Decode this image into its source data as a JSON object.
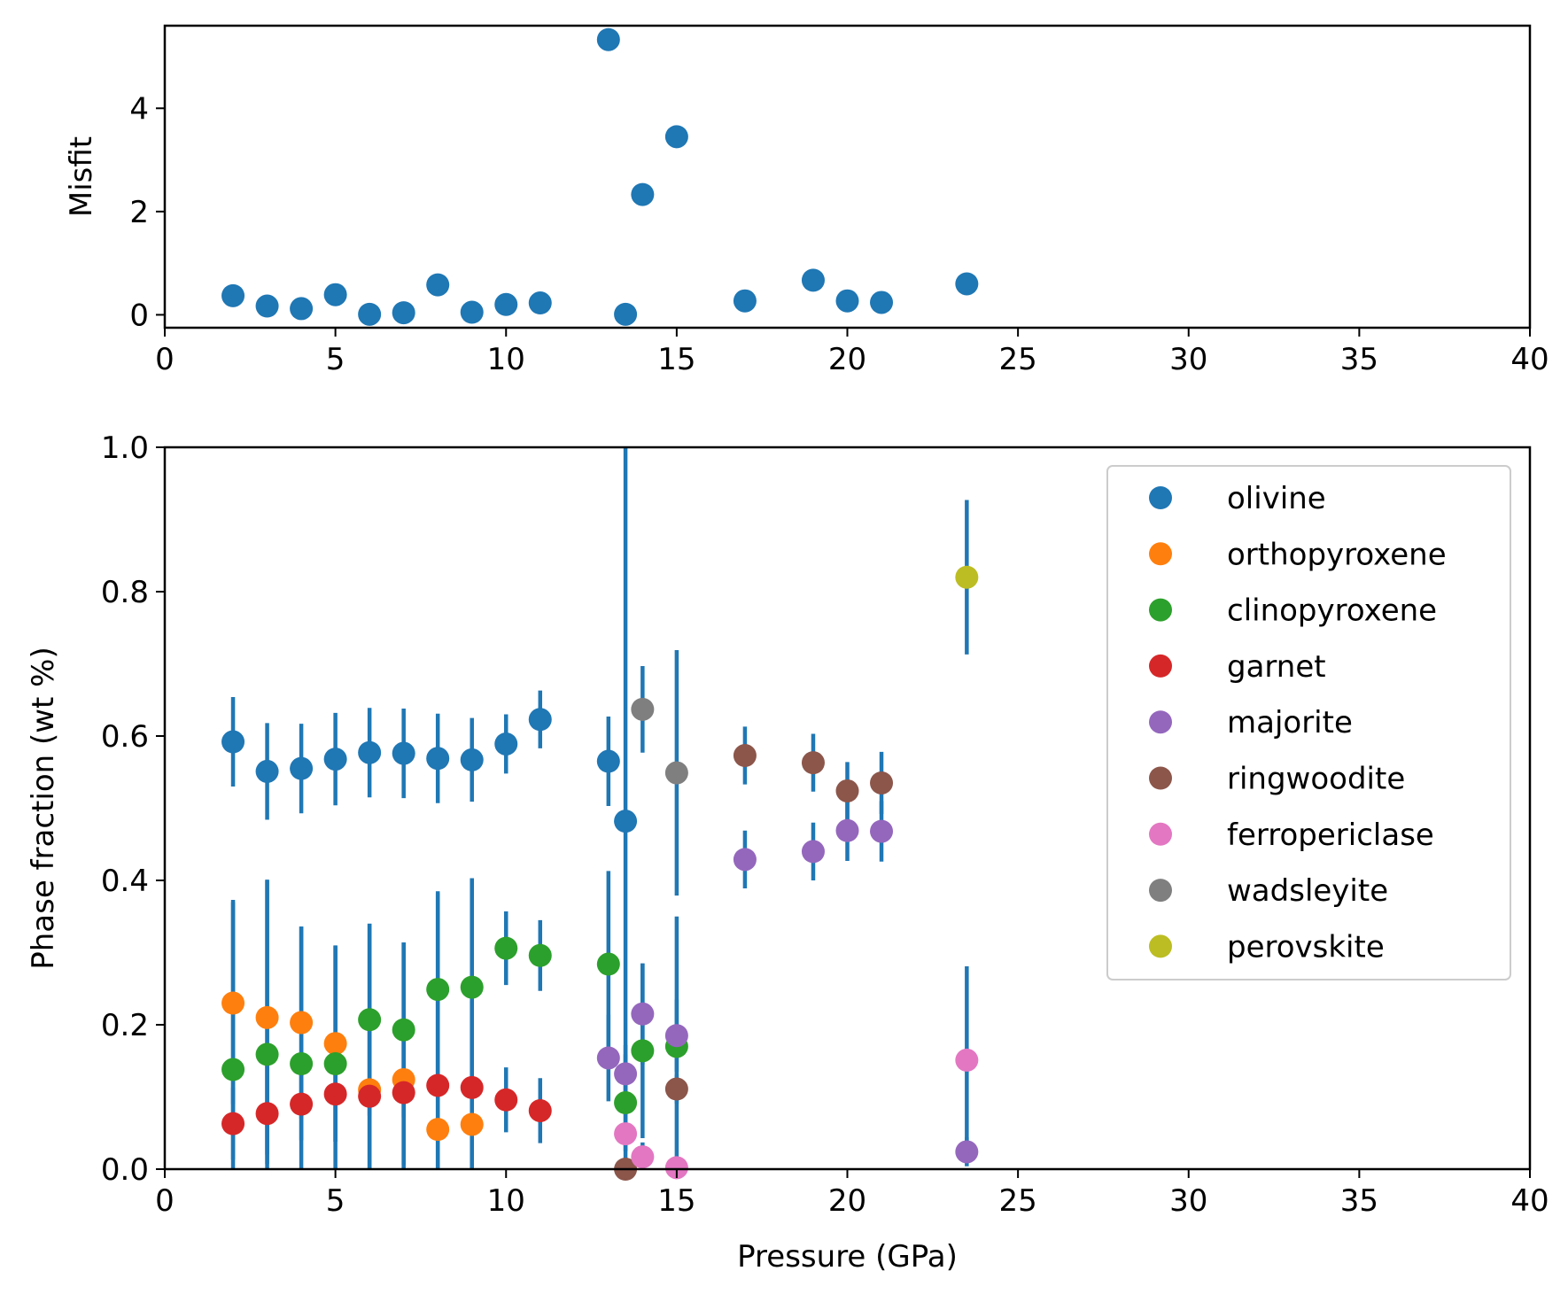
{
  "chart_data": [
    {
      "type": "scatter",
      "xlabel": "",
      "ylabel": "Misfit",
      "xlim": [
        0,
        40
      ],
      "ylim": [
        -0.25,
        5.6
      ],
      "xticks": [
        0,
        5,
        10,
        15,
        20,
        25,
        30,
        35,
        40
      ],
      "xtick_labels": [
        "0",
        "5",
        "10",
        "15",
        "20",
        "25",
        "30",
        "35",
        "40"
      ],
      "yticks": [
        0,
        2,
        4
      ],
      "ytick_labels": [
        "0",
        "2",
        "4"
      ],
      "series": [
        {
          "color": "#1f77b4",
          "x": [
            2,
            3,
            4,
            5,
            6,
            7,
            8,
            9,
            10,
            11,
            13,
            13.5,
            14,
            15,
            17,
            19,
            20,
            21,
            23.5
          ],
          "y": [
            0.37,
            0.17,
            0.12,
            0.39,
            0.01,
            0.04,
            0.58,
            0.05,
            0.2,
            0.23,
            5.33,
            0.01,
            2.33,
            3.45,
            0.27,
            0.67,
            0.27,
            0.24,
            0.6
          ]
        }
      ]
    },
    {
      "type": "scatter",
      "xlabel": "Pressure (GPa)",
      "ylabel": "Phase fraction (wt %)",
      "xlim": [
        0,
        40
      ],
      "ylim": [
        0,
        1.0
      ],
      "xticks": [
        0,
        5,
        10,
        15,
        20,
        25,
        30,
        35,
        40
      ],
      "xtick_labels": [
        "0",
        "5",
        "10",
        "15",
        "20",
        "25",
        "30",
        "35",
        "40"
      ],
      "yticks": [
        0,
        0.2,
        0.4,
        0.6,
        0.8,
        1.0
      ],
      "ytick_labels": [
        "0.0",
        "0.2",
        "0.4",
        "0.6",
        "0.8",
        "1.0"
      ],
      "legend_position": "top-right",
      "errorbar_color": "#1f77b4",
      "series": [
        {
          "name": "olivine",
          "color": "#1f77b4",
          "x": [
            2,
            3,
            4,
            5,
            6,
            7,
            8,
            9,
            10,
            11,
            13,
            13.5
          ],
          "y": [
            0.592,
            0.551,
            0.555,
            0.568,
            0.577,
            0.576,
            0.569,
            0.567,
            0.589,
            0.623,
            0.565,
            0.482
          ],
          "err": [
            0.062,
            0.067,
            0.062,
            0.064,
            0.062,
            0.062,
            0.062,
            0.058,
            0.041,
            0.04,
            0.062,
            0.55
          ]
        },
        {
          "name": "orthopyroxene",
          "color": "#ff7f0e",
          "x": [
            2,
            3,
            4,
            5,
            6,
            7,
            8,
            9
          ],
          "y": [
            0.23,
            0.21,
            0.203,
            0.174,
            0.11,
            0.124,
            0.055,
            0.062
          ],
          "err": [
            0.14,
            0.19,
            0.133,
            0.136,
            0.23,
            0.19,
            0.33,
            0.34
          ]
        },
        {
          "name": "clinopyroxene",
          "color": "#2ca02c",
          "x": [
            2,
            3,
            4,
            5,
            6,
            7,
            8,
            9,
            10,
            11,
            13,
            13.5,
            14,
            15
          ],
          "y": [
            0.138,
            0.159,
            0.146,
            0.146,
            0.207,
            0.193,
            0.249,
            0.252,
            0.306,
            0.296,
            0.284,
            0.092,
            0.164,
            0.17
          ],
          "err": [
            0.235,
            0.242,
            0.19,
            0.163,
            0.133,
            0.121,
            0.133,
            0.151,
            0.051,
            0.049,
            0.129,
            0.067,
            0.121,
            0.18
          ]
        },
        {
          "name": "garnet",
          "color": "#d62728",
          "x": [
            2,
            3,
            4,
            5,
            6,
            7,
            8,
            9,
            10,
            11
          ],
          "y": [
            0.063,
            0.077,
            0.09,
            0.104,
            0.101,
            0.106,
            0.116,
            0.113,
            0.096,
            0.081
          ],
          "err": [
            0.05,
            0.07,
            0.05,
            0.066,
            0.1,
            0.1,
            0.12,
            0.12,
            0.045,
            0.045
          ]
        },
        {
          "name": "majorite",
          "color": "#9467bd",
          "x": [
            13,
            13.5,
            14,
            15,
            17,
            19,
            20,
            21,
            23.5
          ],
          "y": [
            0.154,
            0.132,
            0.215,
            0.185,
            0.429,
            0.44,
            0.469,
            0.468,
            0.024
          ],
          "err": [
            0.06,
            0.04,
            0.07,
            0.05,
            0.04,
            0.04,
            0.042,
            0.042,
            0.02
          ]
        },
        {
          "name": "ringwoodite",
          "color": "#8c564b",
          "x": [
            13.5,
            15,
            17,
            19,
            20,
            21
          ],
          "y": [
            0.0,
            0.111,
            0.573,
            0.563,
            0.524,
            0.535
          ],
          "err": [
            0.0,
            0.02,
            0.04,
            0.04,
            0.04,
            0.043
          ]
        },
        {
          "name": "ferropericlase",
          "color": "#e377c2",
          "x": [
            13.5,
            14,
            15,
            23.5
          ],
          "y": [
            0.049,
            0.017,
            0.002,
            0.151
          ],
          "err": [
            0.0,
            0.02,
            0.0,
            0.13
          ]
        },
        {
          "name": "wadsleyite",
          "color": "#7f7f7f",
          "x": [
            14,
            15
          ],
          "y": [
            0.637,
            0.549
          ],
          "err": [
            0.06,
            0.17
          ]
        },
        {
          "name": "perovskite",
          "color": "#bcbd22",
          "x": [
            23.5
          ],
          "y": [
            0.82
          ],
          "err": [
            0.107
          ]
        }
      ]
    }
  ]
}
